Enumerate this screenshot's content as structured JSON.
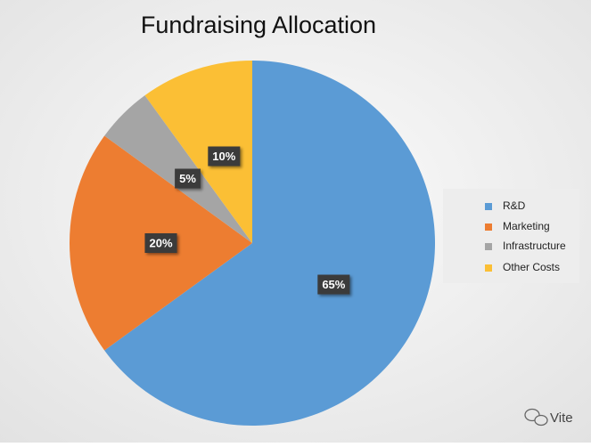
{
  "chart_data": {
    "type": "pie",
    "title": "Fundraising Allocation",
    "categories": [
      "R&D",
      "Marketing",
      "Infrastructure",
      "Other Costs"
    ],
    "values": [
      65,
      20,
      5,
      10
    ],
    "value_labels": [
      "65%",
      "20%",
      "5%",
      "10%"
    ],
    "colors": [
      "#5b9bd5",
      "#ed7d31",
      "#a5a5a5",
      "#fbbf35"
    ],
    "legend": "right"
  },
  "watermark": "Vite"
}
